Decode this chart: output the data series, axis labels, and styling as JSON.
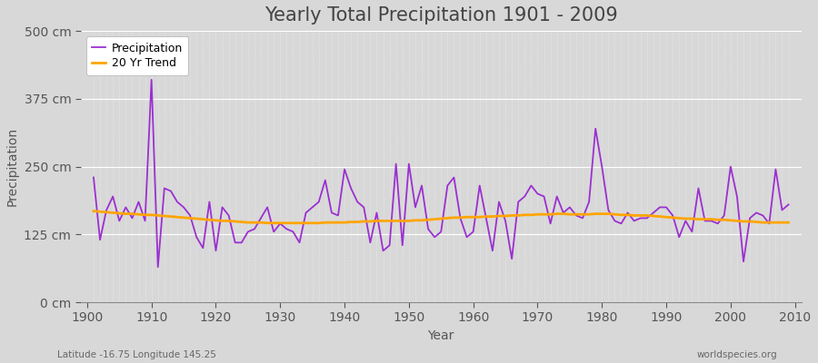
{
  "title": "Yearly Total Precipitation 1901 - 2009",
  "xlabel": "Year",
  "ylabel": "Precipitation",
  "subtitle": "Latitude -16.75 Longitude 145.25",
  "watermark": "worldspecies.org",
  "ylim": [
    0,
    500
  ],
  "ytick_values": [
    0,
    125,
    250,
    375,
    500
  ],
  "xlim": [
    1899,
    2011
  ],
  "xtick_start": 1900,
  "xtick_step": 10,
  "years": [
    1901,
    1902,
    1903,
    1904,
    1905,
    1906,
    1907,
    1908,
    1909,
    1910,
    1911,
    1912,
    1913,
    1914,
    1915,
    1916,
    1917,
    1918,
    1919,
    1920,
    1921,
    1922,
    1923,
    1924,
    1925,
    1926,
    1927,
    1928,
    1929,
    1930,
    1931,
    1932,
    1933,
    1934,
    1935,
    1936,
    1937,
    1938,
    1939,
    1940,
    1941,
    1942,
    1943,
    1944,
    1945,
    1946,
    1947,
    1948,
    1949,
    1950,
    1951,
    1952,
    1953,
    1954,
    1955,
    1956,
    1957,
    1958,
    1959,
    1960,
    1961,
    1962,
    1963,
    1964,
    1965,
    1966,
    1967,
    1968,
    1969,
    1970,
    1971,
    1972,
    1973,
    1974,
    1975,
    1976,
    1977,
    1978,
    1979,
    1980,
    1981,
    1982,
    1983,
    1984,
    1985,
    1986,
    1987,
    1988,
    1989,
    1990,
    1991,
    1992,
    1993,
    1994,
    1995,
    1996,
    1997,
    1998,
    1999,
    2000,
    2001,
    2002,
    2003,
    2004,
    2005,
    2006,
    2007,
    2008,
    2009
  ],
  "precipitation": [
    230,
    115,
    170,
    195,
    150,
    175,
    155,
    185,
    150,
    410,
    65,
    210,
    205,
    185,
    175,
    160,
    120,
    100,
    185,
    95,
    175,
    160,
    110,
    110,
    130,
    135,
    155,
    175,
    130,
    145,
    135,
    130,
    110,
    165,
    175,
    185,
    225,
    165,
    160,
    245,
    210,
    185,
    175,
    110,
    165,
    95,
    105,
    255,
    105,
    255,
    175,
    215,
    135,
    120,
    130,
    215,
    230,
    155,
    120,
    130,
    215,
    155,
    95,
    185,
    150,
    80,
    185,
    195,
    215,
    200,
    195,
    145,
    195,
    165,
    175,
    160,
    155,
    185,
    320,
    250,
    170,
    150,
    145,
    165,
    150,
    155,
    155,
    165,
    175,
    175,
    160,
    120,
    150,
    130,
    210,
    150,
    150,
    145,
    160,
    250,
    195,
    75,
    155,
    165,
    160,
    145,
    245,
    170,
    180
  ],
  "trend": [
    168,
    167,
    166,
    165,
    164,
    163,
    163,
    162,
    161,
    161,
    160,
    159,
    158,
    157,
    156,
    155,
    154,
    153,
    152,
    151,
    150,
    150,
    149,
    148,
    147,
    147,
    147,
    146,
    146,
    146,
    146,
    146,
    146,
    146,
    146,
    146,
    147,
    147,
    147,
    147,
    148,
    148,
    149,
    149,
    150,
    150,
    150,
    150,
    150,
    150,
    151,
    151,
    152,
    153,
    154,
    155,
    156,
    156,
    157,
    157,
    157,
    158,
    158,
    159,
    159,
    160,
    160,
    161,
    161,
    162,
    162,
    162,
    163,
    163,
    162,
    162,
    162,
    162,
    163,
    163,
    163,
    162,
    161,
    161,
    160,
    160,
    160,
    159,
    158,
    157,
    156,
    155,
    154,
    154,
    153,
    153,
    153,
    152,
    152,
    151,
    150,
    149,
    149,
    148,
    147,
    147,
    147,
    147,
    147
  ],
  "precip_color": "#9B30D0",
  "trend_color": "#FFA500",
  "fig_bg_color": "#D8D8D8",
  "plot_bg_color": "#D8D8D8",
  "grid_color": "#FFFFFF",
  "title_color": "#444444",
  "label_color": "#555555",
  "title_fontsize": 15,
  "tick_fontsize": 10,
  "axis_label_fontsize": 10,
  "legend_fontsize": 9,
  "precip_linewidth": 1.3,
  "trend_linewidth": 2.0
}
